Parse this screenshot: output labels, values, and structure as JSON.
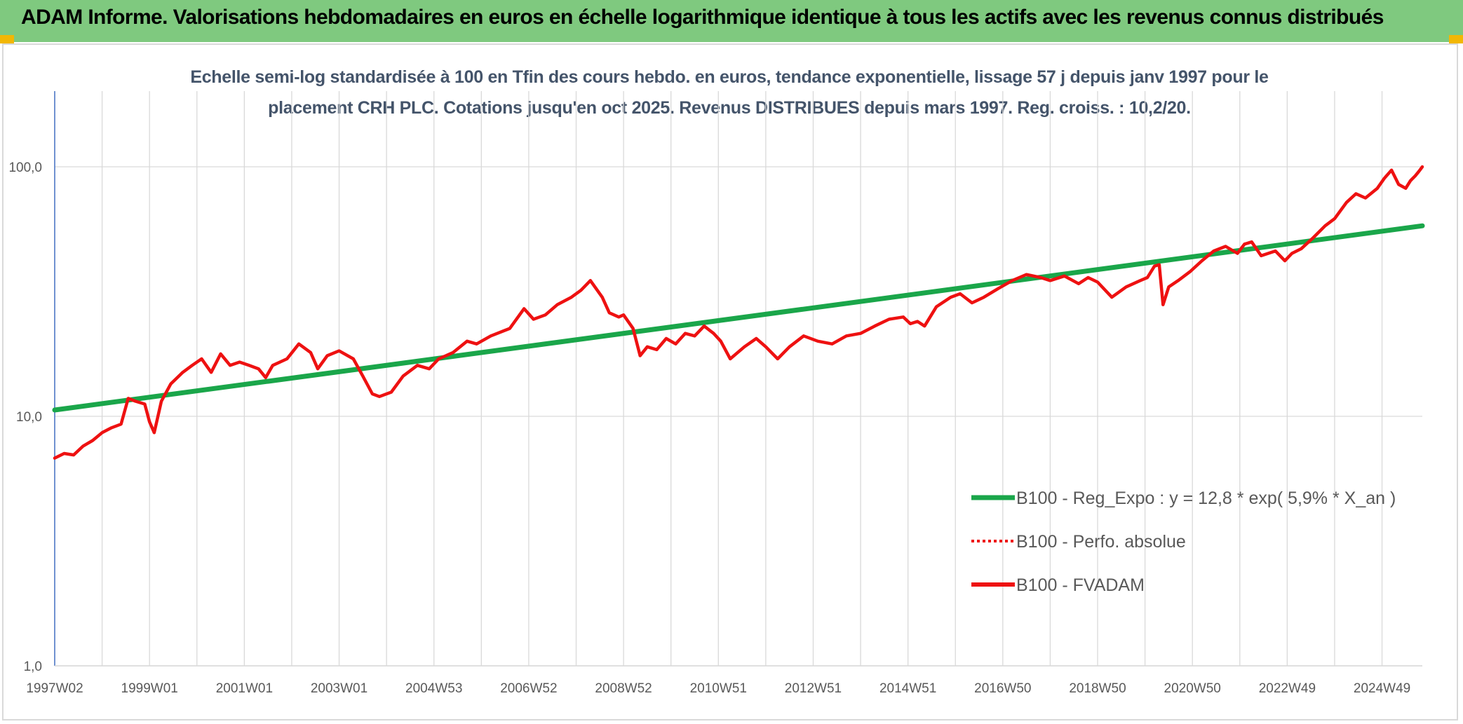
{
  "header": {
    "title": "ADAM Informe. Valorisations hebdomadaires en euros en échelle logarithmique identique à tous les actifs avec les revenus connus distribués"
  },
  "colors": {
    "banner": "#7fc97f",
    "trend": "#1aa64a",
    "series": "#ee1111",
    "grid": "#d9d9d9",
    "axis_text": "#595959",
    "subtitle": "#44546a"
  },
  "chart_data": {
    "type": "line",
    "subtitle_line1": "Echelle semi-log standardisée à 100 en Tfin des cours hebdo. en euros, tendance exponentielle, lissage 57 j depuis janv 1997 pour le",
    "subtitle_line2": "placement CRH PLC. Cotations jusqu'en oct 2025. Revenus DISTRIBUES depuis mars 1997. Reg. croiss. : 10,2/20.",
    "y_scale": "log",
    "ylim": [
      1,
      200
    ],
    "xlim": [
      1997.0,
      2025.85
    ],
    "grid": true,
    "legend_position": "bottom-right",
    "y_ticks": [
      {
        "value": 1,
        "label": "1,0"
      },
      {
        "value": 10,
        "label": "10,0"
      },
      {
        "value": 100,
        "label": "100,0"
      }
    ],
    "x_ticks": [
      {
        "x": 1997.0,
        "label": "1997W02"
      },
      {
        "x": 1999.0,
        "label": "1999W01"
      },
      {
        "x": 2001.0,
        "label": "2001W01"
      },
      {
        "x": 2003.0,
        "label": "2003W01"
      },
      {
        "x": 2005.0,
        "label": "2004W53"
      },
      {
        "x": 2007.0,
        "label": "2006W52"
      },
      {
        "x": 2009.0,
        "label": "2008W52"
      },
      {
        "x": 2011.0,
        "label": "2010W51"
      },
      {
        "x": 2013.0,
        "label": "2012W51"
      },
      {
        "x": 2015.0,
        "label": "2014W51"
      },
      {
        "x": 2017.0,
        "label": "2016W50"
      },
      {
        "x": 2019.0,
        "label": "2018W50"
      },
      {
        "x": 2021.0,
        "label": "2020W50"
      },
      {
        "x": 2023.0,
        "label": "2022W49"
      },
      {
        "x": 2025.0,
        "label": "2024W49"
      }
    ],
    "x_minor_grid": [
      1998.0,
      2000.0,
      2002.0,
      2004.0,
      2006.0,
      2008.0,
      2010.0,
      2012.0,
      2014.0,
      2016.0,
      2018.0,
      2020.0,
      2022.0,
      2024.0
    ],
    "series": [
      {
        "name": "B100 - Reg_Expo : y = 12,8 * exp( 5,9% *  X_an )",
        "style": "solid-thick",
        "color": "#1aa64a",
        "points": [
          [
            1997.0,
            10.6
          ],
          [
            2025.85,
            58.0
          ]
        ]
      },
      {
        "name": "B100 - Perfo. absolue",
        "style": "dotted",
        "color": "#ee1111",
        "points": []
      },
      {
        "name": "B100 - FVADAM",
        "style": "solid",
        "color": "#ee1111",
        "points": [
          [
            1997.0,
            6.8
          ],
          [
            1997.2,
            7.1
          ],
          [
            1997.4,
            7.0
          ],
          [
            1997.6,
            7.6
          ],
          [
            1997.8,
            8.0
          ],
          [
            1998.0,
            8.6
          ],
          [
            1998.2,
            9.0
          ],
          [
            1998.4,
            9.3
          ],
          [
            1998.55,
            11.8
          ],
          [
            1998.7,
            11.5
          ],
          [
            1998.9,
            11.2
          ],
          [
            1999.0,
            9.5
          ],
          [
            1999.1,
            8.6
          ],
          [
            1999.25,
            11.5
          ],
          [
            1999.45,
            13.5
          ],
          [
            1999.7,
            15.0
          ],
          [
            1999.9,
            16.0
          ],
          [
            2000.1,
            17.0
          ],
          [
            2000.3,
            15.0
          ],
          [
            2000.5,
            17.8
          ],
          [
            2000.7,
            16.0
          ],
          [
            2000.9,
            16.5
          ],
          [
            2001.1,
            16.0
          ],
          [
            2001.3,
            15.5
          ],
          [
            2001.45,
            14.3
          ],
          [
            2001.6,
            16.0
          ],
          [
            2001.9,
            17.0
          ],
          [
            2002.15,
            19.5
          ],
          [
            2002.4,
            18.0
          ],
          [
            2002.55,
            15.5
          ],
          [
            2002.75,
            17.5
          ],
          [
            2003.0,
            18.3
          ],
          [
            2003.3,
            17.0
          ],
          [
            2003.5,
            14.5
          ],
          [
            2003.7,
            12.3
          ],
          [
            2003.85,
            12.0
          ],
          [
            2004.1,
            12.5
          ],
          [
            2004.35,
            14.5
          ],
          [
            2004.65,
            16.0
          ],
          [
            2004.9,
            15.5
          ],
          [
            2005.1,
            17.0
          ],
          [
            2005.4,
            18.0
          ],
          [
            2005.7,
            20.0
          ],
          [
            2005.9,
            19.5
          ],
          [
            2006.2,
            21.0
          ],
          [
            2006.6,
            22.5
          ],
          [
            2006.9,
            27.0
          ],
          [
            2007.1,
            24.5
          ],
          [
            2007.35,
            25.5
          ],
          [
            2007.6,
            28.0
          ],
          [
            2007.9,
            30.0
          ],
          [
            2008.1,
            32.0
          ],
          [
            2008.3,
            35.0
          ],
          [
            2008.55,
            30.0
          ],
          [
            2008.7,
            26.0
          ],
          [
            2008.9,
            25.0
          ],
          [
            2009.0,
            25.5
          ],
          [
            2009.2,
            22.5
          ],
          [
            2009.35,
            17.5
          ],
          [
            2009.5,
            19.0
          ],
          [
            2009.7,
            18.5
          ],
          [
            2009.9,
            20.5
          ],
          [
            2010.1,
            19.5
          ],
          [
            2010.3,
            21.5
          ],
          [
            2010.5,
            21.0
          ],
          [
            2010.7,
            23.0
          ],
          [
            2010.9,
            21.5
          ],
          [
            2011.05,
            20.0
          ],
          [
            2011.25,
            17.0
          ],
          [
            2011.55,
            19.0
          ],
          [
            2011.8,
            20.5
          ],
          [
            2012.0,
            19.0
          ],
          [
            2012.25,
            17.0
          ],
          [
            2012.5,
            19.0
          ],
          [
            2012.8,
            21.0
          ],
          [
            2013.1,
            20.0
          ],
          [
            2013.4,
            19.5
          ],
          [
            2013.7,
            21.0
          ],
          [
            2014.0,
            21.5
          ],
          [
            2014.3,
            23.0
          ],
          [
            2014.6,
            24.5
          ],
          [
            2014.9,
            25.0
          ],
          [
            2015.05,
            23.5
          ],
          [
            2015.2,
            24.0
          ],
          [
            2015.35,
            23.0
          ],
          [
            2015.6,
            27.5
          ],
          [
            2015.9,
            30.0
          ],
          [
            2016.1,
            31.0
          ],
          [
            2016.35,
            28.5
          ],
          [
            2016.6,
            30.0
          ],
          [
            2016.9,
            32.5
          ],
          [
            2017.2,
            35.0
          ],
          [
            2017.5,
            37.0
          ],
          [
            2017.8,
            36.0
          ],
          [
            2018.0,
            35.0
          ],
          [
            2018.3,
            36.5
          ],
          [
            2018.6,
            34.0
          ],
          [
            2018.8,
            36.0
          ],
          [
            2019.0,
            34.5
          ],
          [
            2019.3,
            30.0
          ],
          [
            2019.6,
            33.0
          ],
          [
            2019.9,
            35.0
          ],
          [
            2020.05,
            36.0
          ],
          [
            2020.2,
            40.0
          ],
          [
            2020.3,
            40.5
          ],
          [
            2020.38,
            28.0
          ],
          [
            2020.5,
            33.0
          ],
          [
            2020.7,
            35.0
          ],
          [
            2020.95,
            38.0
          ],
          [
            2021.2,
            42.0
          ],
          [
            2021.45,
            46.0
          ],
          [
            2021.7,
            48.0
          ],
          [
            2021.95,
            45.0
          ],
          [
            2022.1,
            49.0
          ],
          [
            2022.25,
            50.0
          ],
          [
            2022.45,
            44.0
          ],
          [
            2022.75,
            46.0
          ],
          [
            2022.95,
            42.0
          ],
          [
            2023.1,
            45.0
          ],
          [
            2023.3,
            47.0
          ],
          [
            2023.55,
            52.0
          ],
          [
            2023.8,
            58.0
          ],
          [
            2024.0,
            62.0
          ],
          [
            2024.25,
            72.0
          ],
          [
            2024.45,
            78.0
          ],
          [
            2024.65,
            75.0
          ],
          [
            2024.9,
            82.0
          ],
          [
            2025.05,
            90.0
          ],
          [
            2025.2,
            97.0
          ],
          [
            2025.35,
            85.0
          ],
          [
            2025.5,
            82.0
          ],
          [
            2025.6,
            88.0
          ],
          [
            2025.7,
            92.0
          ],
          [
            2025.78,
            96.0
          ],
          [
            2025.85,
            100.0
          ]
        ]
      }
    ]
  }
}
